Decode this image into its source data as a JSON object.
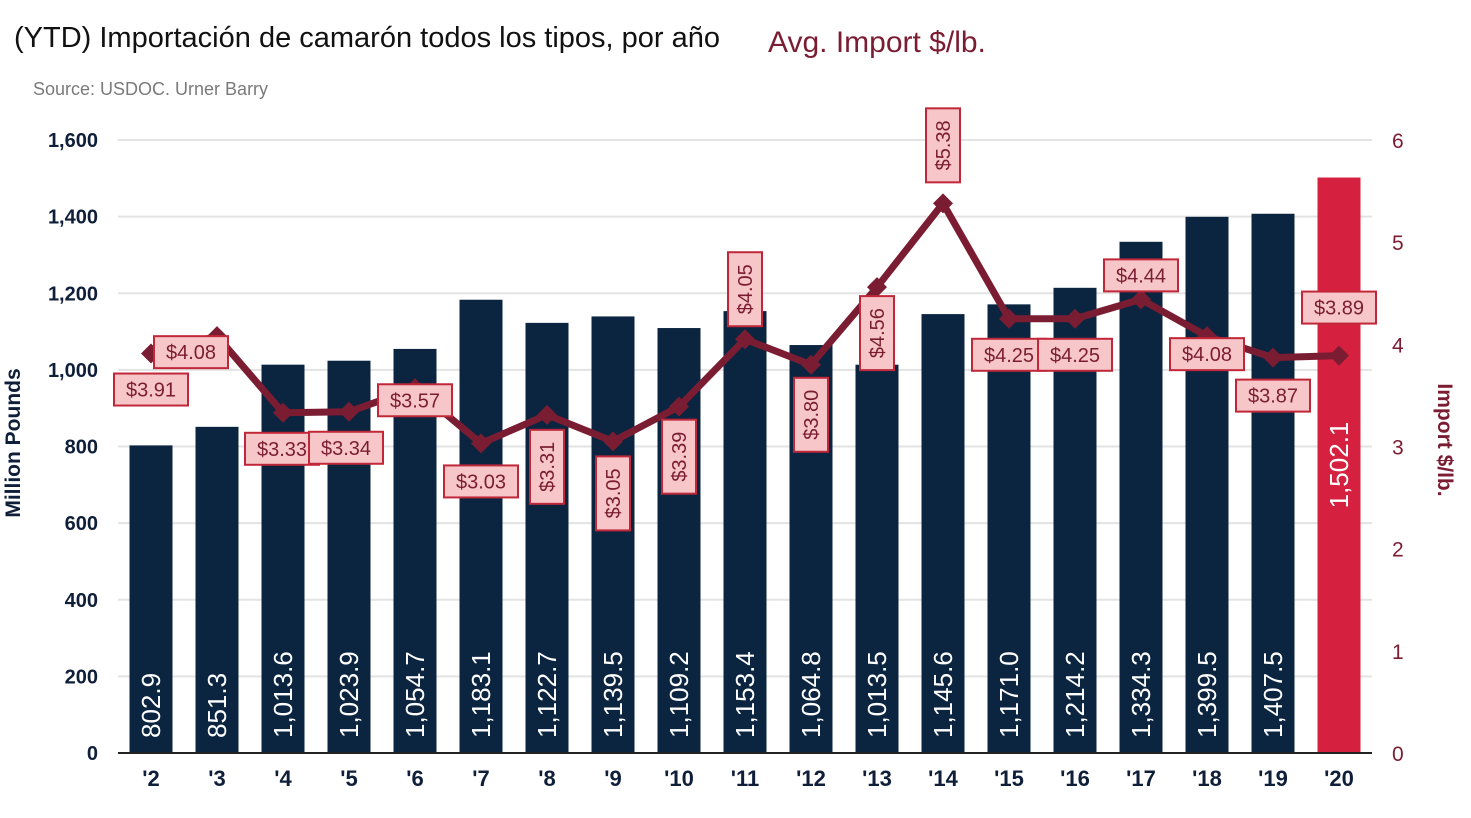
{
  "header": {
    "title": "(YTD) Importación de camarón todos los tipos, por año",
    "source": "Source: USDOC. Urner Barry"
  },
  "colors": {
    "bar": "#0b2440",
    "bar_highlight": "#d5203f",
    "line": "#7b1d32",
    "label_fill": "#f7c6c8",
    "label_stroke": "#c0283a",
    "grid": "#e3e3e3",
    "axis_text": "#0f1f3a"
  },
  "chart_data": {
    "type": "bar",
    "categories": [
      "'2",
      "'3",
      "'4",
      "'5",
      "'6",
      "'7",
      "'8",
      "'9",
      "'10",
      "'11",
      "'12",
      "'13",
      "'14",
      "'15",
      "'16",
      "'17",
      "'18",
      "'19",
      "'20"
    ],
    "series": [
      {
        "type": "bar",
        "axis": "left",
        "values": [
          802.9,
          851.3,
          1013.6,
          1023.9,
          1054.7,
          1183.1,
          1122.7,
          1139.5,
          1109.2,
          1153.4,
          1064.8,
          1013.5,
          1145.6,
          1171.0,
          1214.2,
          1334.3,
          1399.5,
          1407.5,
          1502.1
        ],
        "value_labels": [
          "802.9",
          "851.3",
          "1,013.6",
          "1,023.9",
          "1,054.7",
          "1,183.1",
          "1,122.7",
          "1,139.5",
          "1,109.2",
          "1,153.4",
          "1,064.8",
          "1,013.5",
          "1,145.6",
          "1,171.0",
          "1,214.2",
          "1,334.3",
          "1,399.5",
          "1,407.5",
          "1,502.1"
        ],
        "highlight_index": 18
      },
      {
        "name": "Avg. Import $/lb.",
        "type": "line",
        "axis": "right",
        "values": [
          3.91,
          4.08,
          3.33,
          3.34,
          3.57,
          3.03,
          3.31,
          3.05,
          3.39,
          4.05,
          3.8,
          4.56,
          5.38,
          4.25,
          4.25,
          4.44,
          4.08,
          3.87,
          3.89
        ],
        "value_labels": [
          "$3.91",
          "$4.08",
          "$3.33",
          "$3.34",
          "$3.57",
          "$3.03",
          "$3.31",
          "$3.05",
          "$3.39",
          "$4.05",
          "$3.80",
          "$4.56",
          "$5.38",
          "$4.25",
          "$4.25",
          "$4.44",
          "$4.08",
          "$3.87",
          "$3.89"
        ]
      }
    ],
    "ylabel": "Million Pounds",
    "y2label": "Import $/lb.",
    "ylim": [
      0,
      1600
    ],
    "y2lim": [
      0,
      6
    ],
    "yticks": [
      0,
      200,
      400,
      600,
      800,
      1000,
      1200,
      1400,
      1600
    ],
    "ytick_labels": [
      "0",
      "200",
      "400",
      "600",
      "800",
      "1,000",
      "1,200",
      "1,400",
      "1,600"
    ],
    "y2ticks": [
      0,
      1,
      2,
      3,
      4,
      5,
      6
    ],
    "y2tick_labels": [
      "0",
      "1",
      "2",
      "3",
      "4",
      "5",
      "6"
    ],
    "grid": true,
    "legend_position": "top"
  }
}
